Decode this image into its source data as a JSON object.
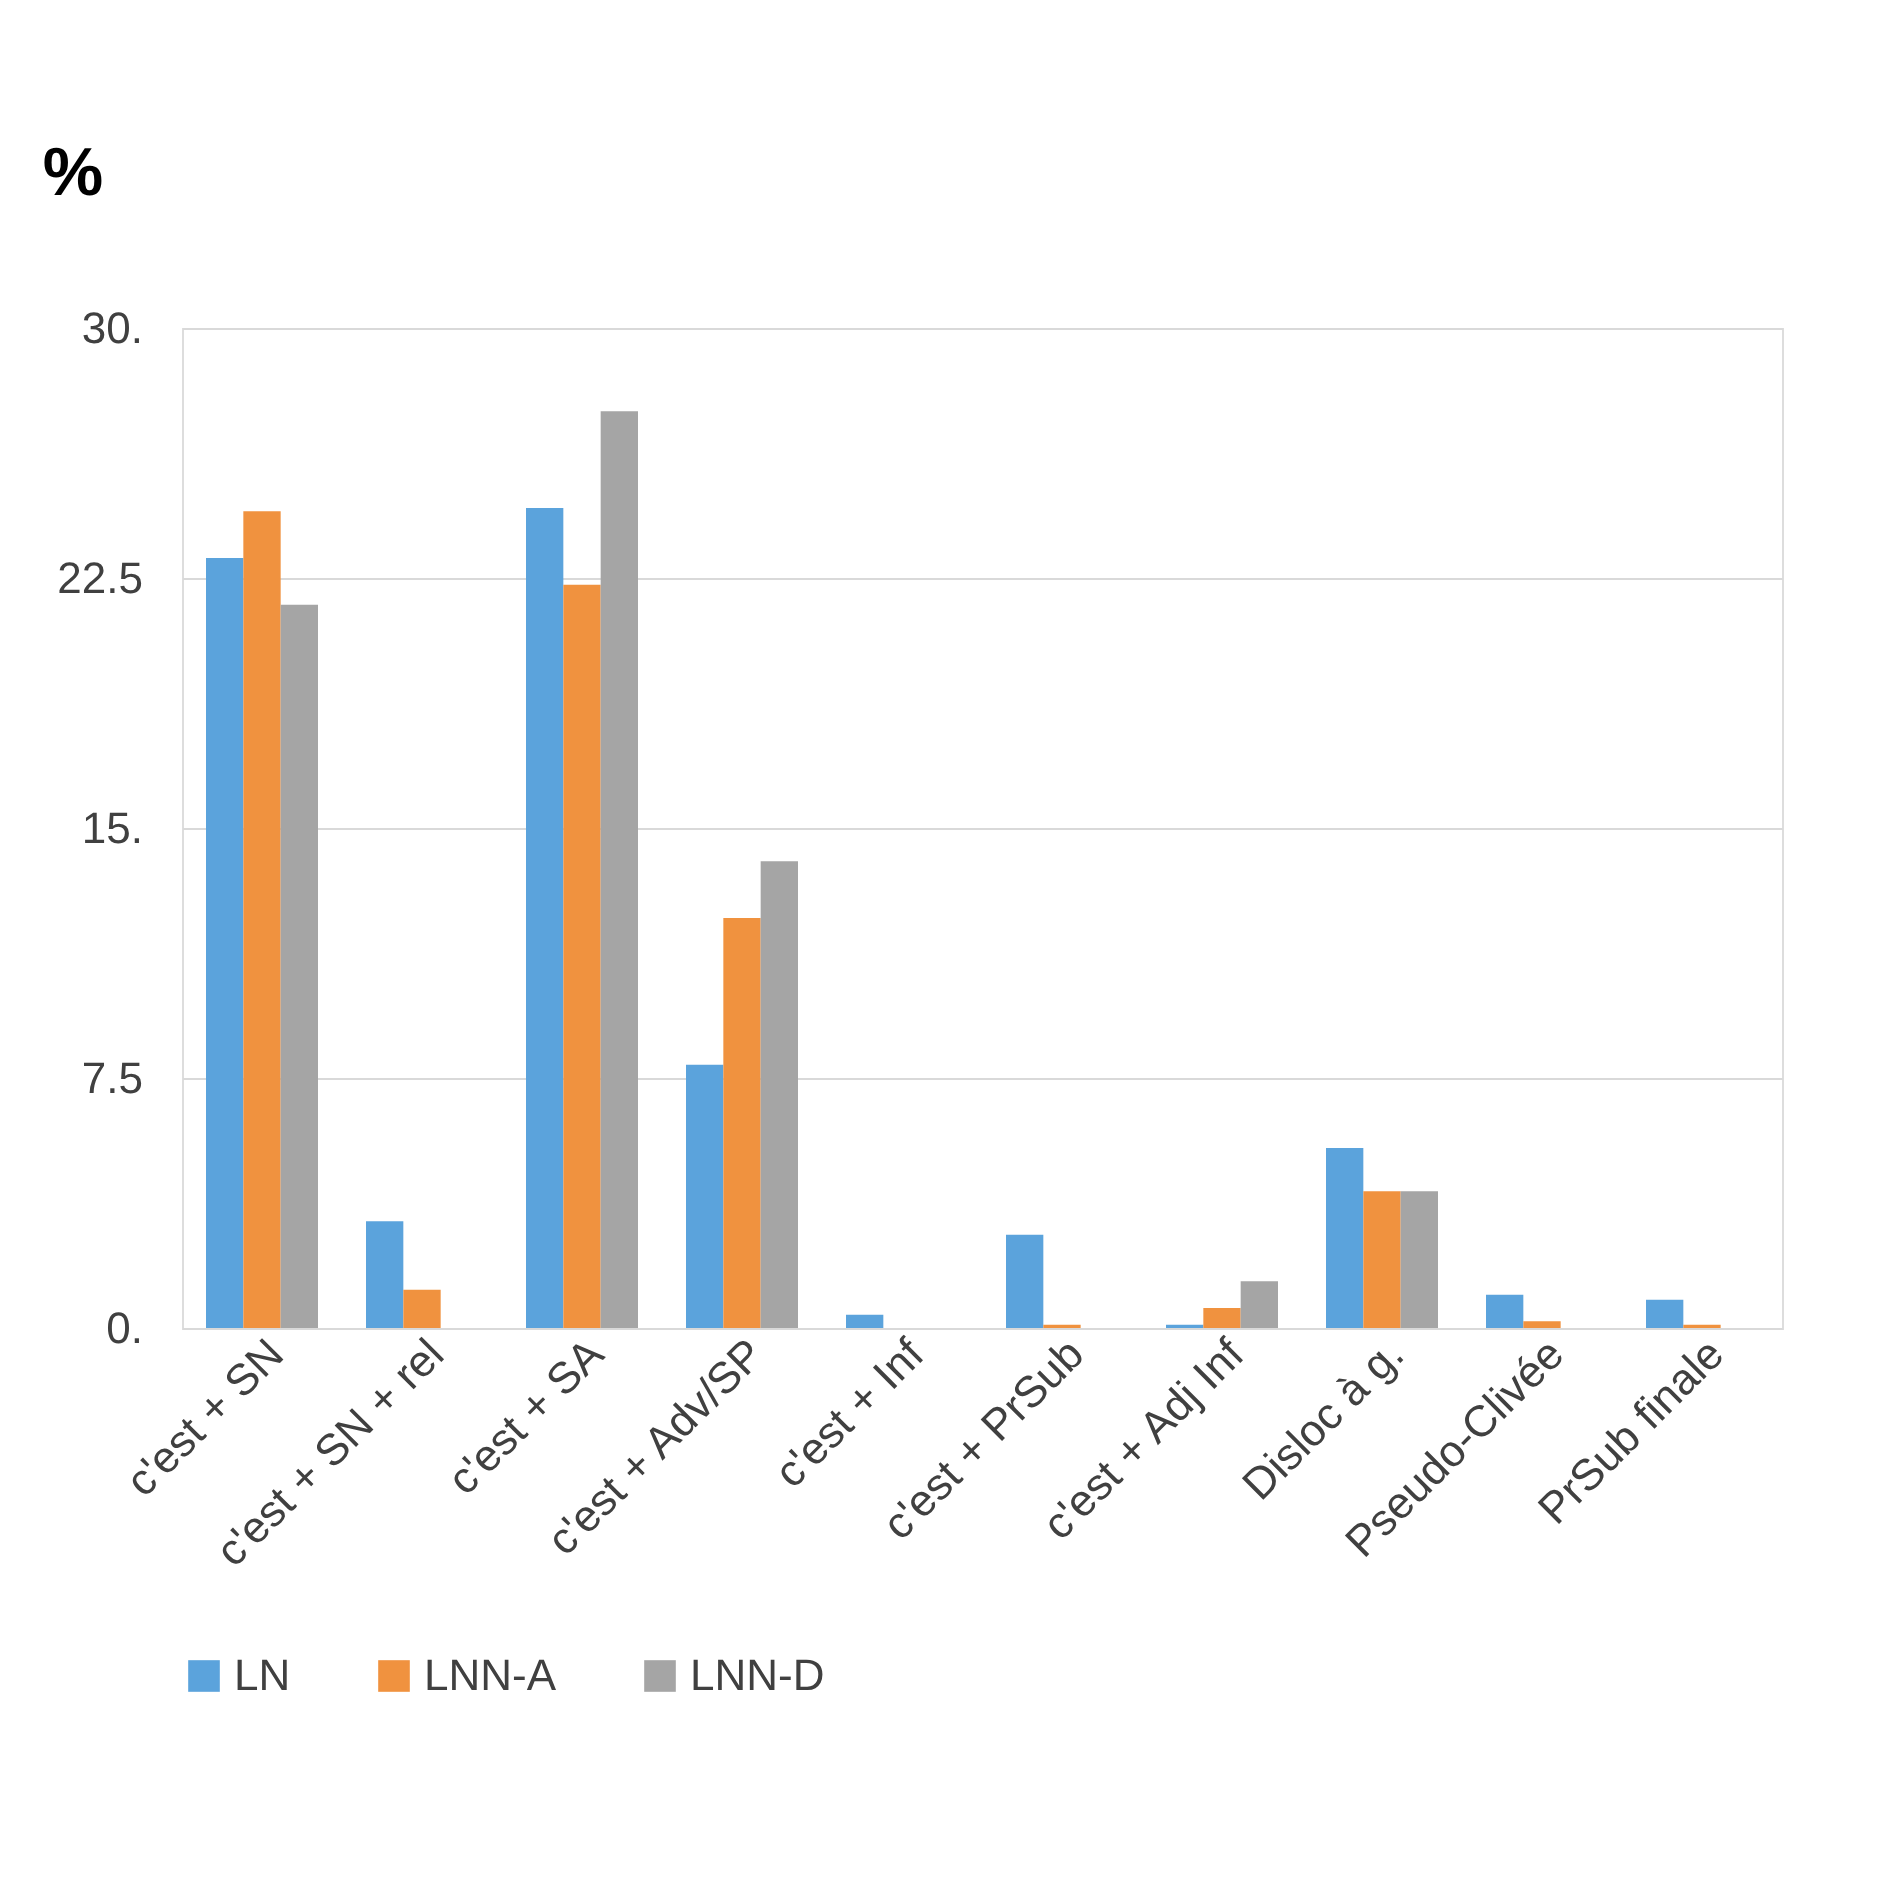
{
  "chart_data": {
    "type": "bar",
    "ylabel": "%",
    "categories": [
      "c'est + SN",
      "c'est + SN + rel",
      "c'est + SA",
      "c'est + Adv/SP",
      "c'est + Inf",
      "c'est + PrSub",
      "c'est + Adj Inf",
      "Disloc à g.",
      "Pseudo-Clivée",
      "PrSub finale"
    ],
    "series": [
      {
        "name": "LN",
        "color": "#5ba3dc",
        "values": [
          23.1,
          3.2,
          24.6,
          7.9,
          0.4,
          2.8,
          0.1,
          5.4,
          1.0,
          0.85
        ]
      },
      {
        "name": "LNN-A",
        "color": "#f0923f",
        "values": [
          24.5,
          1.15,
          22.3,
          12.3,
          0,
          0.1,
          0.6,
          4.1,
          0.2,
          0.1
        ]
      },
      {
        "name": "LNN-D",
        "color": "#a5a5a5",
        "values": [
          21.7,
          0,
          27.5,
          14.0,
          0,
          0,
          1.4,
          4.1,
          0,
          0
        ]
      }
    ],
    "ylim": [
      0,
      30
    ],
    "yticks": [
      {
        "value": 0,
        "label": "0."
      },
      7.5,
      {
        "value": 15,
        "label": "15."
      },
      22.5,
      {
        "value": 30,
        "label": "30."
      }
    ],
    "grid": "y",
    "legend": "bottom"
  }
}
